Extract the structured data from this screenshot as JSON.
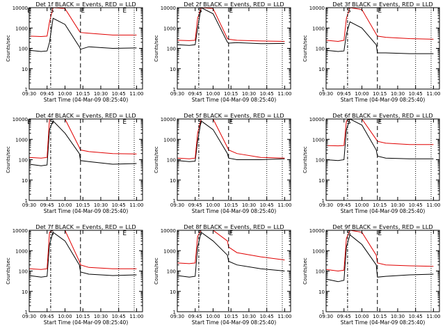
{
  "colors": {
    "events": "#000000",
    "lld": "#e00000",
    "axes": "#000000"
  },
  "chart_data": [
    {
      "type": "line",
      "title": "Det 1f BLACK = Events, RED = LLD",
      "xlabel": "Start Time (04-Mar-09 08:25:40)",
      "ylabel": "Counts/sec",
      "x_ticks": [
        "09:30",
        "09:45",
        "10:00",
        "10:15",
        "10:30",
        "10:45",
        "11:00"
      ],
      "y_ticks": [
        "1",
        "10",
        "100",
        "1000",
        "10000"
      ],
      "ylim": [
        1,
        10000
      ],
      "y_scale": "log",
      "xlim_minutes": [
        570,
        665
      ],
      "markers": [
        {
          "label": "E",
          "at": "09:30"
        },
        {
          "label": "S",
          "at": "09:49"
        },
        {
          "label": "E",
          "at": "10:15"
        },
        {
          "label": "E",
          "at": "10:50"
        }
      ],
      "vlines": [
        "09:48",
        "10:13",
        "10:45",
        "10:58"
      ],
      "series": [
        {
          "name": "Events",
          "color": "#000000",
          "x": [
            "09:30",
            "09:40",
            "09:45",
            "09:47",
            "09:50",
            "10:00",
            "10:12",
            "10:13",
            "10:20",
            "10:40",
            "11:00"
          ],
          "values": [
            80,
            70,
            75,
            200,
            3000,
            1500,
            120,
            90,
            120,
            100,
            105
          ]
        },
        {
          "name": "LLD",
          "color": "#e00000",
          "x": [
            "09:30",
            "09:40",
            "09:45",
            "09:47",
            "09:50",
            "10:00",
            "10:12",
            "10:13",
            "10:20",
            "10:40",
            "11:00"
          ],
          "values": [
            400,
            380,
            400,
            2000,
            10000,
            9000,
            700,
            600,
            550,
            450,
            450
          ]
        }
      ]
    },
    {
      "type": "line",
      "title": "Det 2f BLACK = Events, RED = LLD",
      "xlabel": "Start Time (04-Mar-09 08:25:40)",
      "ylabel": "Counts/sec",
      "x_ticks": [
        "09:30",
        "09:45",
        "10:00",
        "10:15",
        "10:30",
        "10:45",
        "11:00"
      ],
      "y_ticks": [
        "1",
        "10",
        "100",
        "1000",
        "10000"
      ],
      "ylim": [
        1,
        10000
      ],
      "y_scale": "log",
      "xlim_minutes": [
        570,
        665
      ],
      "markers": [
        {
          "label": "S",
          "at": "09:49"
        },
        {
          "label": "E",
          "at": "10:15"
        }
      ],
      "vlines": [
        "09:48",
        "10:13",
        "10:45",
        "10:58"
      ],
      "series": [
        {
          "name": "Events",
          "color": "#000000",
          "x": [
            "09:30",
            "09:40",
            "09:45",
            "09:47",
            "09:50",
            "10:00",
            "10:12",
            "10:13",
            "10:20",
            "10:40",
            "11:00"
          ],
          "values": [
            150,
            140,
            150,
            1000,
            10000,
            5000,
            200,
            180,
            190,
            170,
            175
          ]
        },
        {
          "name": "LLD",
          "color": "#e00000",
          "x": [
            "09:30",
            "09:40",
            "09:45",
            "09:47",
            "09:50",
            "10:00",
            "10:12",
            "10:13",
            "10:20",
            "10:40",
            "11:00"
          ],
          "values": [
            250,
            240,
            250,
            3000,
            10000,
            9000,
            300,
            280,
            250,
            230,
            220
          ]
        }
      ]
    },
    {
      "type": "line",
      "title": "Det 3f BLACK = Events, RED = LLD",
      "xlabel": "Start Time (04-Mar-09 08:25:40)",
      "ylabel": "Counts/sec",
      "x_ticks": [
        "09:30",
        "09:45",
        "10:00",
        "10:15",
        "10:30",
        "10:45",
        "11:00"
      ],
      "y_ticks": [
        "1",
        "10",
        "100",
        "1000",
        "10000"
      ],
      "ylim": [
        1,
        10000
      ],
      "y_scale": "log",
      "xlim_minutes": [
        570,
        665
      ],
      "markers": [
        {
          "label": "S",
          "at": "09:49"
        },
        {
          "label": "E",
          "at": "10:15"
        }
      ],
      "vlines": [
        "09:48",
        "10:13",
        "10:45",
        "10:58"
      ],
      "series": [
        {
          "name": "Events",
          "color": "#000000",
          "x": [
            "09:30",
            "09:40",
            "09:45",
            "09:47",
            "09:50",
            "10:00",
            "10:12",
            "10:13",
            "10:20",
            "10:40",
            "11:00"
          ],
          "values": [
            80,
            70,
            75,
            500,
            2000,
            1000,
            150,
            60,
            60,
            55,
            55
          ]
        },
        {
          "name": "LLD",
          "color": "#e00000",
          "x": [
            "09:30",
            "09:40",
            "09:45",
            "09:47",
            "09:50",
            "10:00",
            "10:12",
            "10:13",
            "10:20",
            "10:40",
            "11:00"
          ],
          "values": [
            250,
            220,
            250,
            3000,
            10000,
            8000,
            500,
            400,
            350,
            300,
            280
          ]
        }
      ]
    },
    {
      "type": "line",
      "title": "Det 4f BLACK = Events, RED = LLD",
      "xlabel": "Start Time (04-Mar-09 08:25:40)",
      "ylabel": "Counts/sec",
      "x_ticks": [
        "09:30",
        "09:45",
        "10:00",
        "10:15",
        "10:30",
        "10:45",
        "11:00"
      ],
      "y_ticks": [
        "1",
        "10",
        "100",
        "1000",
        "10000"
      ],
      "ylim": [
        1,
        10000
      ],
      "y_scale": "log",
      "xlim_minutes": [
        570,
        665
      ],
      "markers": [
        {
          "label": "E",
          "at": "09:30"
        },
        {
          "label": "S",
          "at": "09:49"
        },
        {
          "label": "E",
          "at": "10:50"
        }
      ],
      "vlines": [
        "09:48",
        "10:13",
        "10:45",
        "10:58"
      ],
      "series": [
        {
          "name": "Events",
          "color": "#000000",
          "x": [
            "09:30",
            "09:40",
            "09:45",
            "09:47",
            "09:50",
            "10:00",
            "10:12",
            "10:13",
            "10:20",
            "10:40",
            "11:00"
          ],
          "values": [
            60,
            50,
            55,
            3000,
            8000,
            2000,
            200,
            90,
            80,
            60,
            65
          ]
        },
        {
          "name": "LLD",
          "color": "#e00000",
          "x": [
            "09:30",
            "09:40",
            "09:45",
            "09:47",
            "09:50",
            "10:00",
            "10:12",
            "10:13",
            "10:20",
            "10:40",
            "11:00"
          ],
          "values": [
            130,
            120,
            130,
            10000,
            10000,
            10000,
            400,
            300,
            250,
            200,
            190
          ]
        }
      ]
    },
    {
      "type": "line",
      "title": "Det 5f BLACK = Events, RED = LLD",
      "xlabel": "Start Time (04-Mar-09 08:25:40)",
      "ylabel": "Counts/sec",
      "x_ticks": [
        "09:30",
        "09:45",
        "10:00",
        "10:15",
        "10:30",
        "10:45",
        "11:00"
      ],
      "y_ticks": [
        "1",
        "10",
        "100",
        "1000",
        "10000"
      ],
      "ylim": [
        1,
        10000
      ],
      "y_scale": "log",
      "xlim_minutes": [
        570,
        665
      ],
      "markers": [
        {
          "label": "S",
          "at": "09:49"
        },
        {
          "label": "E",
          "at": "10:15"
        }
      ],
      "vlines": [
        "09:48",
        "10:13",
        "10:45",
        "10:58"
      ],
      "series": [
        {
          "name": "Events",
          "color": "#000000",
          "x": [
            "09:30",
            "09:40",
            "09:45",
            "09:47",
            "09:50",
            "10:00",
            "10:12",
            "10:13",
            "10:20",
            "10:40",
            "11:00"
          ],
          "values": [
            90,
            80,
            85,
            800,
            8000,
            3000,
            200,
            120,
            100,
            100,
            110
          ]
        },
        {
          "name": "LLD",
          "color": "#e00000",
          "x": [
            "09:30",
            "09:40",
            "09:45",
            "09:47",
            "09:50",
            "10:00",
            "10:12",
            "10:13",
            "10:20",
            "10:40",
            "11:00"
          ],
          "values": [
            120,
            110,
            120,
            2000,
            10000,
            10000,
            400,
            300,
            200,
            130,
            120
          ]
        }
      ]
    },
    {
      "type": "line",
      "title": "Det 6f BLACK = Events, RED = LLD",
      "xlabel": "Start Time (04-Mar-09 08:25:40)",
      "ylabel": "Counts/sec",
      "x_ticks": [
        "09:30",
        "09:45",
        "10:00",
        "10:15",
        "10:30",
        "10:45",
        "11:00"
      ],
      "y_ticks": [
        "1",
        "10",
        "100",
        "1000",
        "10000"
      ],
      "ylim": [
        1,
        10000
      ],
      "y_scale": "log",
      "xlim_minutes": [
        570,
        665
      ],
      "markers": [
        {
          "label": "S",
          "at": "09:49"
        },
        {
          "label": "E",
          "at": "10:15"
        }
      ],
      "vlines": [
        "09:48",
        "10:13",
        "10:45",
        "10:58"
      ],
      "series": [
        {
          "name": "Events",
          "color": "#000000",
          "x": [
            "09:30",
            "09:40",
            "09:45",
            "09:47",
            "09:50",
            "10:00",
            "10:12",
            "10:13",
            "10:20",
            "10:40",
            "11:00"
          ],
          "values": [
            100,
            90,
            100,
            3000,
            10000,
            5000,
            300,
            150,
            120,
            110,
            110
          ]
        },
        {
          "name": "LLD",
          "color": "#e00000",
          "x": [
            "09:30",
            "09:40",
            "09:45",
            "09:47",
            "09:50",
            "10:00",
            "10:12",
            "10:13",
            "10:20",
            "10:40",
            "11:00"
          ],
          "values": [
            500,
            480,
            500,
            8000,
            10000,
            10000,
            1000,
            800,
            650,
            550,
            550
          ]
        }
      ]
    },
    {
      "type": "line",
      "title": "Det 7f BLACK = Events, RED = LLD",
      "xlabel": "Start Time (04-Mar-09 08:25:40)",
      "ylabel": "Counts/sec",
      "x_ticks": [
        "09:30",
        "09:45",
        "10:00",
        "10:15",
        "10:30",
        "10:45",
        "11:00"
      ],
      "y_ticks": [
        "1",
        "10",
        "100",
        "1000",
        "10000"
      ],
      "ylim": [
        1,
        10000
      ],
      "y_scale": "log",
      "xlim_minutes": [
        570,
        665
      ],
      "markers": [
        {
          "label": "S",
          "at": "09:49"
        },
        {
          "label": "E",
          "at": "10:50"
        }
      ],
      "vlines": [
        "09:48",
        "10:13",
        "10:45",
        "10:58"
      ],
      "series": [
        {
          "name": "Events",
          "color": "#000000",
          "x": [
            "09:30",
            "09:40",
            "09:45",
            "09:47",
            "09:50",
            "10:00",
            "10:12",
            "10:13",
            "10:20",
            "10:40",
            "11:00"
          ],
          "values": [
            60,
            50,
            55,
            2000,
            8000,
            3000,
            200,
            90,
            70,
            60,
            65
          ]
        },
        {
          "name": "LLD",
          "color": "#e00000",
          "x": [
            "09:30",
            "09:40",
            "09:45",
            "09:47",
            "09:50",
            "10:00",
            "10:12",
            "10:13",
            "10:20",
            "10:40",
            "11:00"
          ],
          "values": [
            130,
            120,
            130,
            8000,
            10000,
            10000,
            300,
            200,
            150,
            130,
            130
          ]
        }
      ]
    },
    {
      "type": "line",
      "title": "Det 8f BLACK = Events, RED = LLD",
      "xlabel": "Start Time (04-Mar-09 08:25:40)",
      "ylabel": "Counts/sec",
      "x_ticks": [
        "09:30",
        "09:45",
        "10:00",
        "10:15",
        "10:30",
        "10:45",
        "11:00"
      ],
      "y_ticks": [
        "1",
        "10",
        "100",
        "1000",
        "10000"
      ],
      "ylim": [
        1,
        10000
      ],
      "y_scale": "log",
      "xlim_minutes": [
        570,
        665
      ],
      "markers": [
        {
          "label": "S",
          "at": "09:49"
        },
        {
          "label": "E",
          "at": "10:15"
        }
      ],
      "vlines": [
        "09:48",
        "10:13",
        "10:45",
        "10:58"
      ],
      "series": [
        {
          "name": "Events",
          "color": "#000000",
          "x": [
            "09:30",
            "09:40",
            "09:45",
            "09:47",
            "09:50",
            "10:00",
            "10:12",
            "10:13",
            "10:20",
            "10:40",
            "11:00"
          ],
          "values": [
            60,
            50,
            55,
            1500,
            8000,
            3000,
            600,
            300,
            200,
            130,
            100
          ]
        },
        {
          "name": "LLD",
          "color": "#e00000",
          "x": [
            "09:30",
            "09:40",
            "09:45",
            "09:47",
            "09:50",
            "10:00",
            "10:12",
            "10:13",
            "10:20",
            "10:40",
            "11:00"
          ],
          "values": [
            250,
            230,
            250,
            5000,
            10000,
            10000,
            3000,
            1500,
            800,
            500,
            350
          ]
        }
      ]
    },
    {
      "type": "line",
      "title": "Det 9f BLACK = Events, RED = LLD",
      "xlabel": "Start Time (04-Mar-09 08:25:40)",
      "ylabel": "Counts/sec",
      "x_ticks": [
        "09:30",
        "09:45",
        "10:00",
        "10:15",
        "10:30",
        "10:45",
        "11:00"
      ],
      "y_ticks": [
        "1",
        "10",
        "100",
        "1000",
        "10000"
      ],
      "ylim": [
        1,
        10000
      ],
      "y_scale": "log",
      "xlim_minutes": [
        570,
        665
      ],
      "markers": [
        {
          "label": "S",
          "at": "09:49"
        },
        {
          "label": "E",
          "at": "10:15"
        }
      ],
      "vlines": [
        "09:48",
        "10:13",
        "10:45",
        "10:58"
      ],
      "series": [
        {
          "name": "Events",
          "color": "#000000",
          "x": [
            "09:30",
            "09:40",
            "09:45",
            "09:47",
            "09:50",
            "10:00",
            "10:12",
            "10:13",
            "10:20",
            "10:40",
            "11:00"
          ],
          "values": [
            40,
            30,
            35,
            1500,
            6000,
            2000,
            200,
            50,
            55,
            65,
            70
          ]
        },
        {
          "name": "LLD",
          "color": "#e00000",
          "x": [
            "09:30",
            "09:40",
            "09:45",
            "09:47",
            "09:50",
            "10:00",
            "10:12",
            "10:13",
            "10:20",
            "10:40",
            "11:00"
          ],
          "values": [
            120,
            100,
            110,
            4000,
            10000,
            8000,
            600,
            250,
            200,
            180,
            170
          ]
        }
      ]
    }
  ]
}
